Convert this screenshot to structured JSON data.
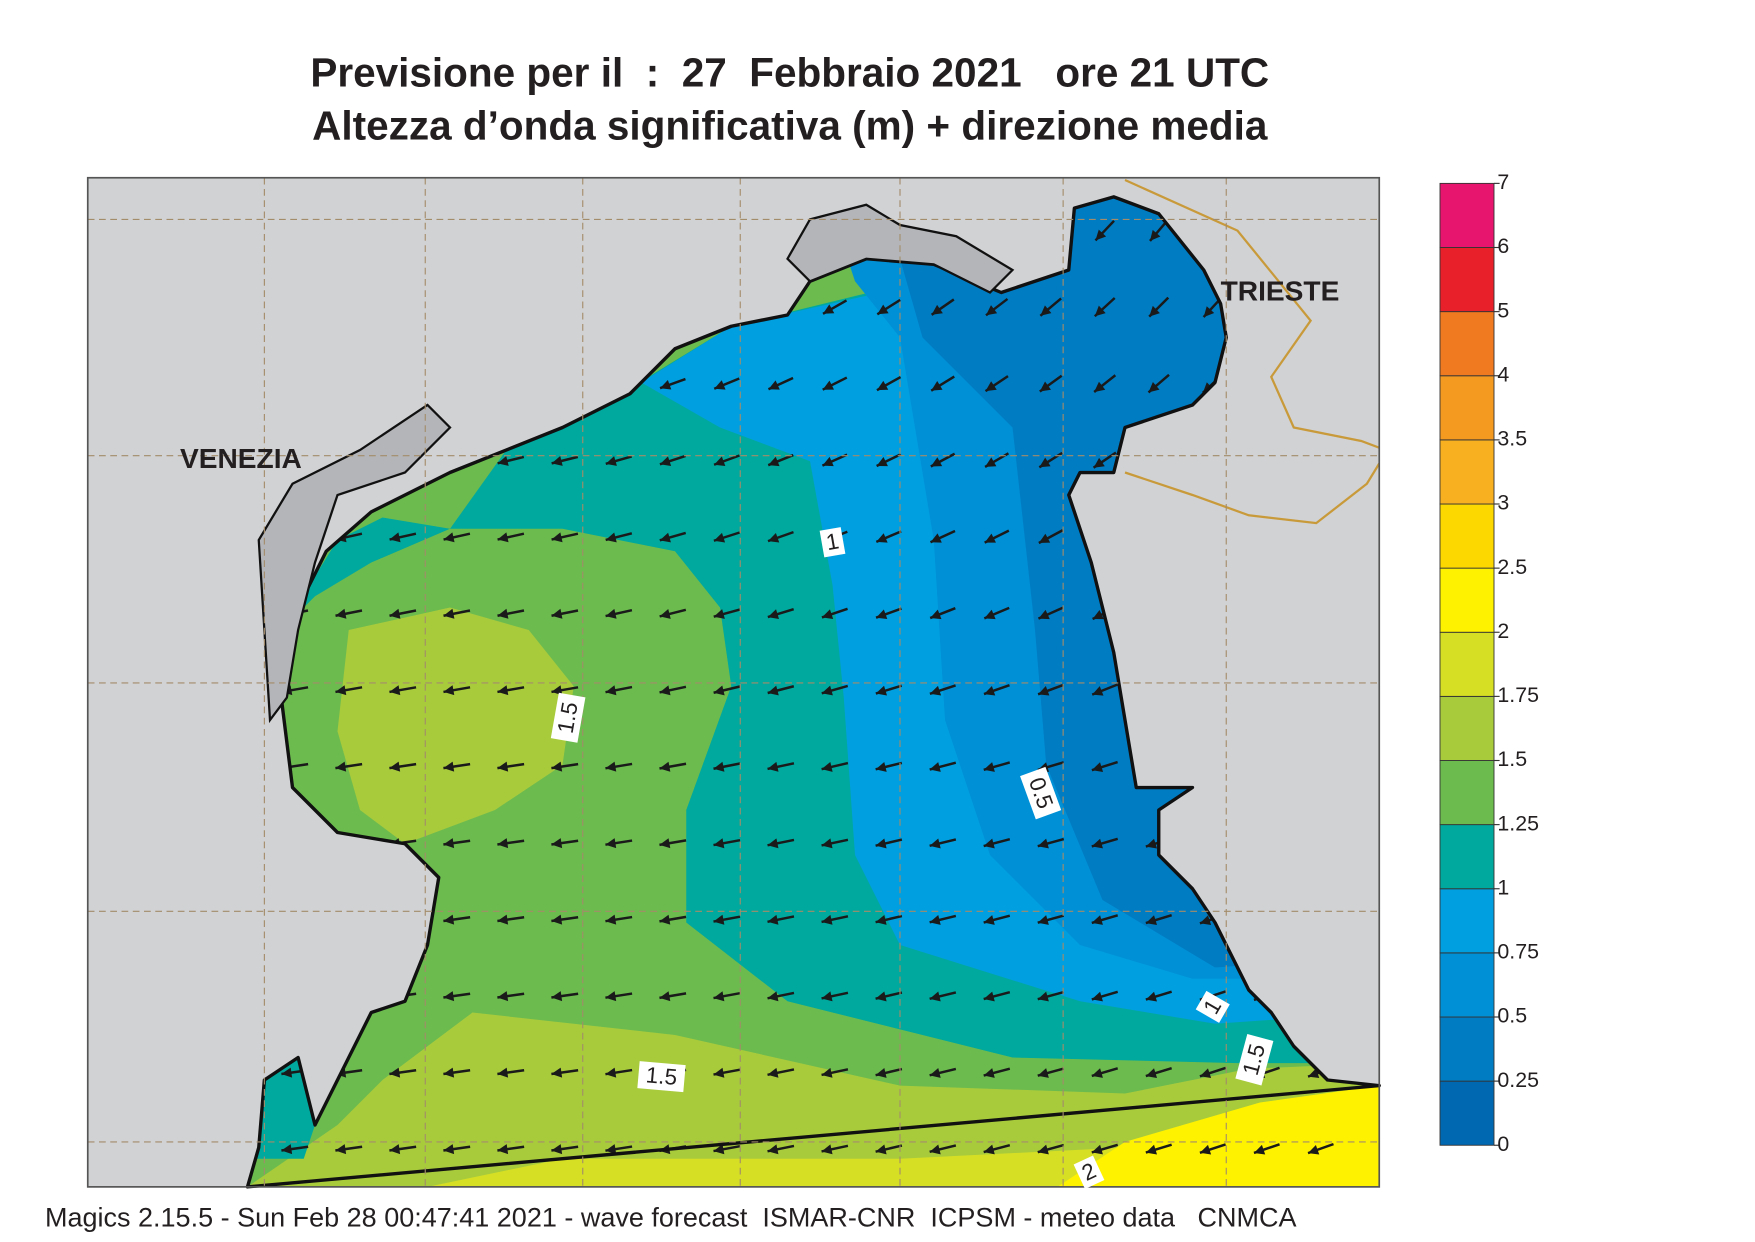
{
  "header": {
    "title": "Previsione per il  :  27  Febbraio 2021   ore 21 UTC",
    "subtitle": "Altezza d’onda significativa (m) + direzione media"
  },
  "map": {
    "place_labels": [
      "VENEZIA",
      "TRIESTE"
    ],
    "contour_labels": [
      1,
      1.5,
      0.5,
      1.5,
      1,
      1.5,
      2
    ]
  },
  "colorbar": {
    "ticks": [
      0,
      0.25,
      0.5,
      0.75,
      1,
      1.25,
      1.5,
      1.75,
      2,
      2.5,
      3,
      3.5,
      4,
      5,
      6,
      7
    ],
    "colors": [
      "#0067b1",
      "#007cc3",
      "#0090d6",
      "#009fe0",
      "#00a99d",
      "#6cbb4f",
      "#a8cb3c",
      "#d6df24",
      "#fff200",
      "#fdd800",
      "#f8b020",
      "#f59a20",
      "#f07a20",
      "#e8202a",
      "#e8156e"
    ]
  },
  "footer": "Magics 2.15.5 - Sun Feb 28 00:47:41 2021 - wave forecast  ISMAR-CNR  ICPSM - meteo data   CNMCA"
}
